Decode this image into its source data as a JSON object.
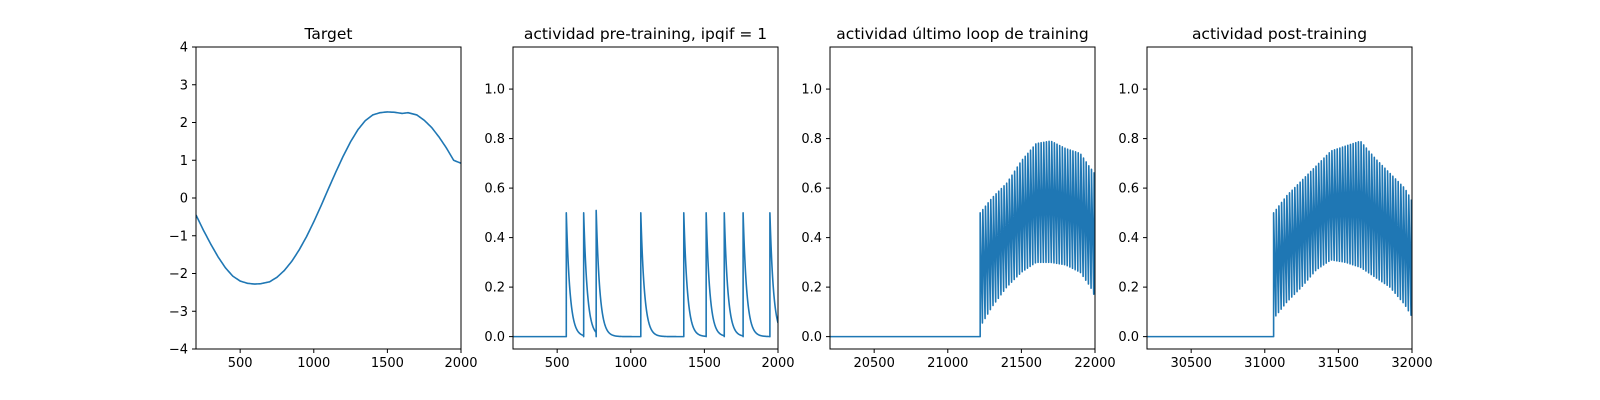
{
  "figure": {
    "line_color": "#1f77b4"
  },
  "chart_data": [
    {
      "type": "line",
      "title": "Target",
      "xlabel": "",
      "ylabel": "",
      "xlim": [
        200,
        2000
      ],
      "ylim": [
        -4,
        4
      ],
      "xticks": [
        500,
        1000,
        1500,
        2000
      ],
      "yticks": [
        -4,
        -3,
        -2,
        -1,
        0,
        1,
        2,
        3,
        4
      ],
      "xtick_labels": [
        "500",
        "1000",
        "1500",
        "2000"
      ],
      "ytick_labels": [
        "−4",
        "−3",
        "−2",
        "−1",
        "0",
        "1",
        "2",
        "3",
        "4"
      ],
      "series": [
        {
          "x": [
            200,
            250,
            300,
            350,
            400,
            450,
            500,
            550,
            600,
            640,
            700,
            750,
            800,
            850,
            900,
            950,
            1000,
            1050,
            1100,
            1150,
            1200,
            1250,
            1300,
            1350,
            1400,
            1450,
            1500,
            1550,
            1600,
            1640,
            1700,
            1750,
            1800,
            1850,
            1900,
            1950,
            2000
          ],
          "y": [
            -0.45,
            -0.85,
            -1.22,
            -1.56,
            -1.85,
            -2.07,
            -2.2,
            -2.26,
            -2.28,
            -2.27,
            -2.22,
            -2.1,
            -1.92,
            -1.68,
            -1.38,
            -1.03,
            -0.63,
            -0.2,
            0.25,
            0.69,
            1.11,
            1.49,
            1.81,
            2.05,
            2.2,
            2.26,
            2.28,
            2.27,
            2.24,
            2.26,
            2.2,
            2.06,
            1.87,
            1.62,
            1.33,
            1.0,
            0.92
          ]
        }
      ]
    },
    {
      "type": "line",
      "title": "actividad pre-training, ipqif = 1",
      "xlabel": "",
      "ylabel": "",
      "xlim": [
        200,
        2000
      ],
      "ylim": [
        -0.05,
        1.17
      ],
      "xticks": [
        500,
        1000,
        1500,
        2000
      ],
      "yticks": [
        0.0,
        0.2,
        0.4,
        0.6,
        0.8,
        1.0
      ],
      "xtick_labels": [
        "500",
        "1000",
        "1500",
        "2000"
      ],
      "ytick_labels": [
        "0.0",
        "0.2",
        "0.4",
        "0.6",
        "0.8",
        "1.0"
      ],
      "spikes": {
        "baseline": 0.0,
        "decay": 25,
        "onsets": [
          562,
          680,
          765,
          1068,
          1360,
          1512,
          1635,
          1763,
          1945
        ],
        "peaks": [
          0.5,
          0.5,
          0.51,
          0.5,
          0.5,
          0.5,
          0.5,
          0.5,
          0.5
        ]
      }
    },
    {
      "type": "line",
      "title": "actividad último loop de training",
      "xlabel": "",
      "ylabel": "",
      "xlim": [
        20200,
        22000
      ],
      "ylim": [
        -0.05,
        1.17
      ],
      "xticks": [
        20500,
        21000,
        21500,
        22000
      ],
      "yticks": [
        0.0,
        0.2,
        0.4,
        0.6,
        0.8,
        1.0
      ],
      "xtick_labels": [
        "20500",
        "21000",
        "21500",
        "22000"
      ],
      "ytick_labels": [
        "0.0",
        "0.2",
        "0.4",
        "0.6",
        "0.8",
        "1.0"
      ],
      "oscillation": {
        "baseline": 0.0,
        "onset": 21220,
        "end": 22000,
        "period": 18,
        "peak_x": [
          21220,
          21300,
          21400,
          21500,
          21600,
          21700,
          21800,
          21900,
          21970,
          22000
        ],
        "peak_y": [
          0.5,
          0.56,
          0.62,
          0.71,
          0.78,
          0.79,
          0.76,
          0.74,
          0.68,
          0.66
        ],
        "trough_x": [
          21230,
          21300,
          21400,
          21500,
          21600,
          21700,
          21800,
          21900,
          21970,
          22000
        ],
        "trough_y": [
          0.05,
          0.12,
          0.2,
          0.26,
          0.3,
          0.3,
          0.29,
          0.26,
          0.2,
          0.16
        ]
      }
    },
    {
      "type": "line",
      "title": "actividad post-training",
      "xlabel": "",
      "ylabel": "",
      "xlim": [
        30200,
        32000
      ],
      "ylim": [
        -0.05,
        1.17
      ],
      "xticks": [
        30500,
        31000,
        31500,
        32000
      ],
      "yticks": [
        0.0,
        0.2,
        0.4,
        0.6,
        0.8,
        1.0
      ],
      "xtick_labels": [
        "30500",
        "31000",
        "31500",
        "32000"
      ],
      "ytick_labels": [
        "0.0",
        "0.2",
        "0.4",
        "0.6",
        "0.8",
        "1.0"
      ],
      "oscillation": {
        "baseline": 0.0,
        "onset": 31060,
        "end": 32000,
        "period": 18,
        "peak_x": [
          31060,
          31150,
          31250,
          31350,
          31450,
          31550,
          31650,
          31750,
          31850,
          31950,
          32000
        ],
        "peak_y": [
          0.5,
          0.57,
          0.63,
          0.69,
          0.75,
          0.77,
          0.79,
          0.72,
          0.66,
          0.6,
          0.55
        ],
        "trough_x": [
          31070,
          31150,
          31250,
          31350,
          31450,
          31550,
          31650,
          31750,
          31850,
          31950,
          32000
        ],
        "trough_y": [
          0.08,
          0.14,
          0.2,
          0.27,
          0.31,
          0.3,
          0.28,
          0.24,
          0.2,
          0.13,
          0.08
        ]
      }
    }
  ]
}
